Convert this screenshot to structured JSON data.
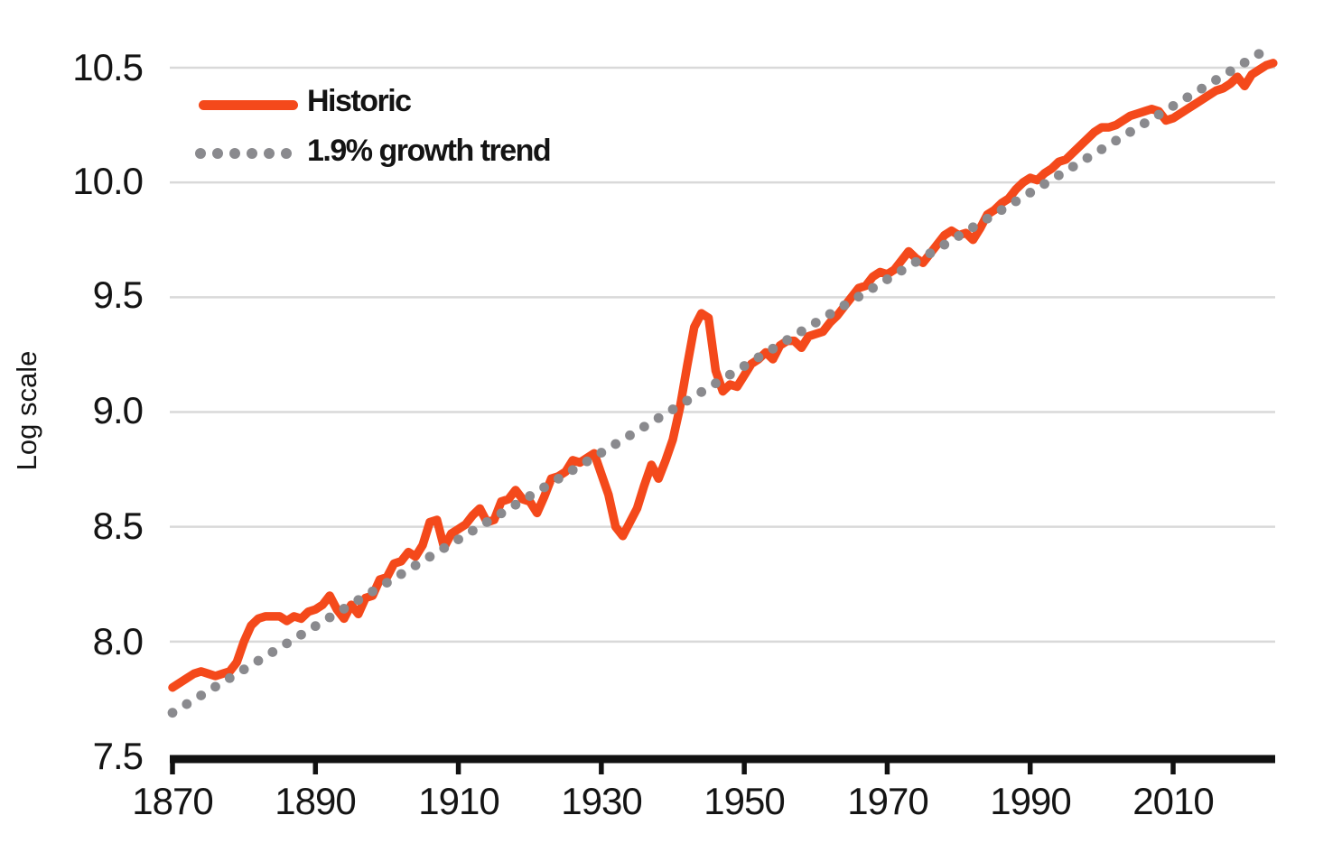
{
  "chart_data": {
    "type": "line",
    "xlabel": "",
    "ylabel": "Log scale",
    "ylim": [
      7.5,
      10.5
    ],
    "xlim": [
      1870,
      2024
    ],
    "grid": "horizontal",
    "legend_position": "top-left-inside",
    "x_ticks": [
      1870,
      1890,
      1910,
      1930,
      1950,
      1970,
      1990,
      2010
    ],
    "y_ticks": [
      7.5,
      8.0,
      8.5,
      9.0,
      9.5,
      10.0,
      10.5
    ],
    "series": [
      {
        "name": "Historic",
        "style": "solid",
        "start_year": 1870,
        "values": [
          7.8,
          7.82,
          7.84,
          7.86,
          7.87,
          7.86,
          7.85,
          7.86,
          7.87,
          7.91,
          8.0,
          8.07,
          8.1,
          8.11,
          8.11,
          8.11,
          8.09,
          8.11,
          8.1,
          8.13,
          8.14,
          8.16,
          8.2,
          8.14,
          8.1,
          8.16,
          8.12,
          8.19,
          8.2,
          8.27,
          8.28,
          8.34,
          8.35,
          8.39,
          8.37,
          8.42,
          8.52,
          8.53,
          8.41,
          8.47,
          8.49,
          8.51,
          8.55,
          8.58,
          8.52,
          8.53,
          8.61,
          8.62,
          8.66,
          8.62,
          8.61,
          8.56,
          8.63,
          8.71,
          8.72,
          8.74,
          8.79,
          8.78,
          8.8,
          8.82,
          8.73,
          8.64,
          8.5,
          8.46,
          8.52,
          8.58,
          8.68,
          8.77,
          8.71,
          8.79,
          8.88,
          9.02,
          9.2,
          9.37,
          9.43,
          9.41,
          9.18,
          9.09,
          9.12,
          9.11,
          9.16,
          9.21,
          9.23,
          9.26,
          9.23,
          9.29,
          9.31,
          9.31,
          9.28,
          9.33,
          9.34,
          9.35,
          9.39,
          9.42,
          9.46,
          9.5,
          9.54,
          9.55,
          9.59,
          9.61,
          9.6,
          9.62,
          9.66,
          9.7,
          9.67,
          9.65,
          9.69,
          9.73,
          9.77,
          9.79,
          9.77,
          9.78,
          9.75,
          9.8,
          9.86,
          9.88,
          9.91,
          9.93,
          9.97,
          10.0,
          10.02,
          10.01,
          10.04,
          10.06,
          10.09,
          10.1,
          10.13,
          10.16,
          10.19,
          10.22,
          10.24,
          10.24,
          10.25,
          10.27,
          10.29,
          10.3,
          10.31,
          10.32,
          10.31,
          10.27,
          10.28,
          10.3,
          10.32,
          10.34,
          10.36,
          10.38,
          10.4,
          10.41,
          10.43,
          10.46,
          10.42,
          10.47,
          10.49,
          10.51,
          10.52
        ]
      },
      {
        "name": "1.9% growth trend",
        "style": "dotted",
        "annual_growth_percent": 1.9,
        "start_year": 1870,
        "end_year": 2022,
        "start_log_value": 7.69,
        "end_log_value": 10.56,
        "point_interval_years": 2
      }
    ]
  },
  "legend": {
    "historic_label": "Historic",
    "trend_label": "1.9% growth trend"
  },
  "axes": {
    "y_title": "Log scale",
    "y_tick_labels": [
      "10.5",
      "10.0",
      "9.5",
      "9.0",
      "8.5",
      "8.0",
      "7.5"
    ],
    "x_tick_labels": [
      "1870",
      "1890",
      "1910",
      "1930",
      "1950",
      "1970",
      "1990",
      "2010"
    ]
  },
  "colors": {
    "historic": "#F4491B",
    "trend": "#8A8A8E",
    "gridline": "#D9D9D9",
    "axis": "#111111",
    "text": "#141414",
    "background": "#FFFFFF"
  }
}
